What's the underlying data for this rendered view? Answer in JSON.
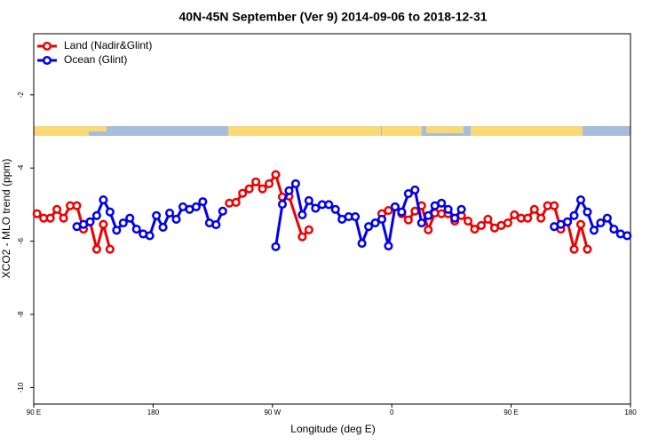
{
  "chart_data": {
    "type": "line",
    "title": "40N-45N September (Ver 9)   2014-09-06 to 2018-12-31",
    "xlabel": "Longitude (deg E)",
    "ylabel": "XCO2 - MLO trend (ppm)",
    "xlim": [
      90,
      540
    ],
    "ylim": [
      -10.45,
      -0.33
    ],
    "xticks": [
      {
        "value": 90,
        "label": "90 E"
      },
      180,
      {
        "value": 270,
        "label": "90 W"
      },
      {
        "value": 360,
        "label": "0"
      },
      {
        "value": 450,
        "label": "90 E"
      },
      {
        "value": 540,
        "label": "180"
      }
    ],
    "yticks": [
      -2,
      -4,
      -6,
      -8,
      -10
    ],
    "legend": "top-left",
    "series": [
      {
        "name": "Land (Nadir&Glint)",
        "color": "#ee0000",
        "x": [
          92.5,
          97.5,
          102.5,
          107.5,
          112.5,
          117.5,
          122.5,
          127.5,
          132.5,
          137.5,
          142.5,
          147.5,
          190,
          237.5,
          242.5,
          247.5,
          252.5,
          257.5,
          262.5,
          267.5,
          272.5,
          277.5,
          282.5,
          292.5,
          297.5,
          325,
          352.5,
          357.5,
          362.5,
          367.5,
          372.5,
          377.5,
          382.5,
          387.5,
          392.5,
          397.5,
          402.5,
          407.5,
          412.5,
          417.5,
          422.5,
          427.5,
          432.5,
          437.5,
          442.5,
          447.5,
          452.5,
          457.5,
          462.5,
          467.5,
          472.5,
          477.5,
          482.5,
          487.5,
          492.5,
          497.5,
          502.5,
          507.5
        ],
        "values": [
          -5.25,
          -5.37,
          -5.37,
          -5.13,
          -5.37,
          -5.03,
          -5.03,
          -5.67,
          -5.47,
          -6.22,
          -5.54,
          -6.22,
          null,
          -4.96,
          -4.94,
          -4.69,
          -4.57,
          -4.38,
          -4.57,
          -4.43,
          -4.18,
          -4.79,
          -4.77,
          -5.88,
          -5.69,
          null,
          -5.25,
          -5.16,
          -5.06,
          -5.25,
          -5.42,
          -5.18,
          -5.03,
          -5.69,
          -5.23,
          -5.25,
          -5.25,
          -5.45,
          -5.3,
          -5.45,
          -5.67,
          -5.57,
          -5.4,
          -5.64,
          -5.57,
          -5.5,
          -5.28,
          -5.37,
          -5.37,
          -5.13,
          -5.37,
          -5.03,
          -5.03,
          -5.67,
          -5.47,
          -6.22,
          -5.54,
          -6.22
        ]
      },
      {
        "name": "Ocean (Glint)",
        "color": "#0000ee",
        "x": [
          122.5,
          127.5,
          132.5,
          137.5,
          142.5,
          147.5,
          152.5,
          157.5,
          162.5,
          167.5,
          172.5,
          177.5,
          182.5,
          187.5,
          192.5,
          197.5,
          202.5,
          207.5,
          212.5,
          217.5,
          222.5,
          227.5,
          232.5,
          255,
          272.5,
          277.5,
          282.5,
          287.5,
          292.5,
          297.5,
          302.5,
          307.5,
          312.5,
          317.5,
          322.5,
          327.5,
          332.5,
          337.5,
          342.5,
          347.5,
          352.5,
          357.5,
          362.5,
          367.5,
          372.5,
          377.5,
          382.5,
          387.5,
          392.5,
          397.5,
          402.5,
          407.5,
          412.5,
          445,
          482.5,
          487.5,
          492.5,
          497.5,
          502.5,
          507.5,
          512.5,
          517.5,
          522.5,
          527.5,
          532.5,
          537.5
        ],
        "values": [
          -5.6,
          -5.54,
          -5.47,
          -5.3,
          -4.87,
          -5.2,
          -5.7,
          -5.5,
          -5.37,
          -5.67,
          -5.8,
          -5.85,
          -5.3,
          -5.62,
          -5.23,
          -5.4,
          -5.06,
          -5.13,
          -5.06,
          -4.92,
          -5.5,
          -5.55,
          -5.18,
          null,
          -6.15,
          -4.99,
          -4.62,
          -4.43,
          -5.28,
          -4.89,
          -5.1,
          -5.0,
          -5.0,
          -5.13,
          -5.4,
          -5.33,
          -5.33,
          -6.06,
          -5.6,
          -5.5,
          -5.4,
          -6.13,
          -5.06,
          -5.2,
          -4.7,
          -4.6,
          -5.5,
          -5.3,
          -5.03,
          -4.96,
          -5.13,
          -5.37,
          -5.13,
          null,
          -5.6,
          -5.54,
          -5.47,
          -5.3,
          -4.87,
          -5.2,
          -5.7,
          -5.5,
          -5.37,
          -5.67,
          -5.8,
          -5.85
        ]
      }
    ]
  }
}
